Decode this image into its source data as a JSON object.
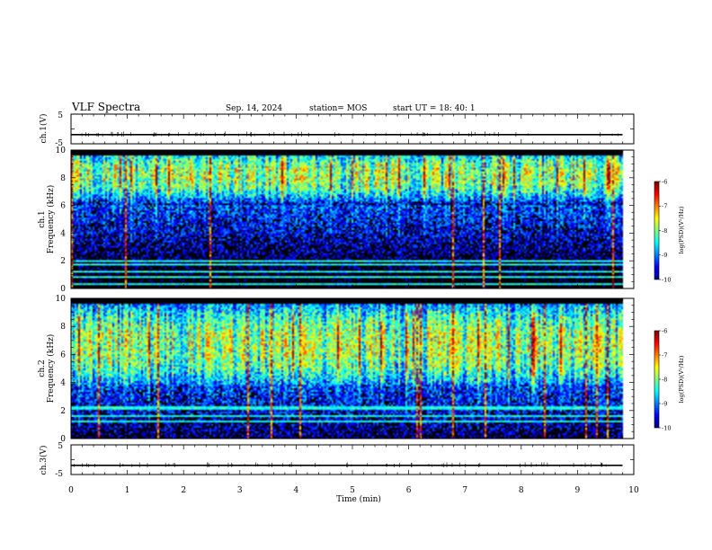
{
  "header": {
    "title": "VLF Spectra",
    "date": "Sep. 14, 2024",
    "station": "station= MOS",
    "start_ut": "start UT =  18: 40: 1"
  },
  "chart_data": [
    {
      "type": "line",
      "name": "ch1-voltage",
      "ylabel": "ch.1(V)",
      "ylim": [
        -5,
        5
      ],
      "yticks": [
        "5",
        "-5"
      ],
      "xlim": [
        0,
        10
      ],
      "x": [
        0,
        9.8
      ],
      "y": [
        -1.9,
        -1.9
      ],
      "line_color": "#000000"
    },
    {
      "type": "heatmap",
      "name": "ch1-spectrogram",
      "ylabel": "ch.1\nFrequency (kHz)",
      "ylim": [
        0,
        10
      ],
      "yticks": [
        "0",
        "2",
        "4",
        "6",
        "8",
        "10"
      ],
      "xlim": [
        0,
        10
      ],
      "data_xmax": 9.8,
      "noise_band_khz": [
        6.0,
        9.6
      ],
      "band_center_khz": 8.2,
      "hlines_khz": [
        0.35,
        0.8,
        1.2,
        1.75,
        1.95
      ],
      "colorbar": {
        "label": "log(PSD)(V²/Hz)",
        "ticks": [
          "-6",
          "-7",
          "-8",
          "-9",
          "-10"
        ],
        "min": -10,
        "max": -6
      }
    },
    {
      "type": "heatmap",
      "name": "ch2-spectrogram",
      "ylabel": "ch.2\nFrequency (kHz)",
      "ylim": [
        0,
        10
      ],
      "yticks": [
        "0",
        "2",
        "4",
        "6",
        "8",
        "10"
      ],
      "xlim": [
        0,
        10
      ],
      "data_xmax": 9.8,
      "noise_band_khz": [
        3.8,
        9.8
      ],
      "band_center_khz": 6.7,
      "hlines_khz": [
        1.2,
        1.6,
        2.2
      ],
      "colorbar": {
        "label": "log(PSD)(V²/Hz)",
        "ticks": [
          "-6",
          "-7",
          "-8",
          "-9",
          "-10"
        ],
        "min": -10,
        "max": -6
      }
    },
    {
      "type": "line",
      "name": "ch3-voltage",
      "ylabel": "ch.3(V)",
      "ylim": [
        -5,
        5
      ],
      "yticks": [
        "5",
        "-5"
      ],
      "xlim": [
        0,
        10
      ],
      "x": [
        0,
        9.8
      ],
      "y": [
        -1.9,
        -1.9
      ],
      "line_color": "#000000"
    }
  ],
  "xaxis": {
    "label": "Time (min)",
    "ticks": [
      "0",
      "1",
      "2",
      "3",
      "4",
      "5",
      "6",
      "7",
      "8",
      "9",
      "10"
    ],
    "xlim": [
      0,
      10
    ]
  }
}
